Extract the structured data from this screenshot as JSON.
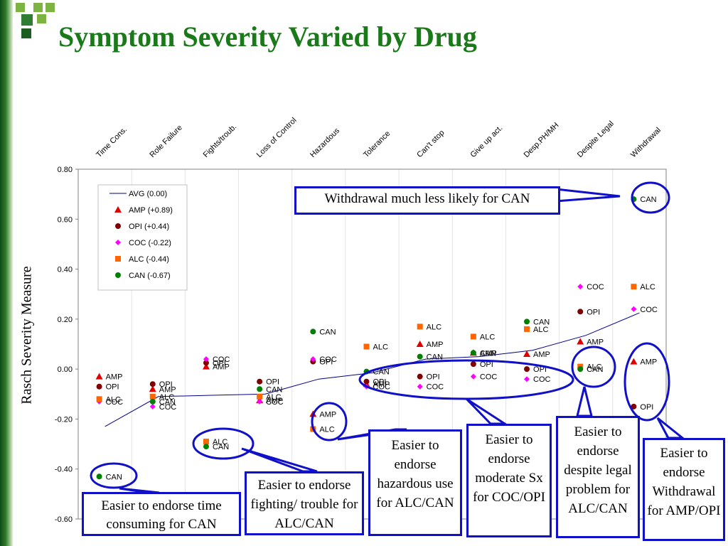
{
  "page": {
    "title": "Symptom Severity Varied by Drug",
    "colors": {
      "title": "#1a7a1a",
      "sidebar": "#1f6b22",
      "callout": "#1010c8"
    }
  },
  "chart_data": {
    "type": "scatter",
    "title": "Symptom Severity Varied by Drug",
    "xlabel": "",
    "ylabel": "Rasch Severity Measure",
    "ylim": [
      -0.6,
      0.8
    ],
    "yticks": [
      "0.80",
      "0.60",
      "0.40",
      "0.20",
      "0.00",
      "-0.20",
      "-0.40",
      "-0.60"
    ],
    "grid": true,
    "legend_position": "top-left",
    "categories": [
      "Time Cons.",
      "Role Failure",
      "Fights/troub.",
      "Loss of Control",
      "Hazardous",
      "Tolerance",
      "Can't stop",
      "Give up act.",
      "Desp.PH/MH",
      "Despite Legal",
      "Withdrawal"
    ],
    "series": [
      {
        "name": "AVG (0.00)",
        "label": "",
        "marker": "line",
        "color": "#00008b",
        "values": [
          -0.23,
          -0.11,
          -0.105,
          -0.1,
          -0.04,
          -0.015,
          0.04,
          0.05,
          0.075,
          0.135,
          0.225
        ]
      },
      {
        "name": "AMP (+0.89)",
        "label": "AMP",
        "marker": "triangle",
        "color": "#e00000",
        "values": [
          -0.03,
          -0.08,
          0.01,
          -0.125,
          -0.18,
          -0.06,
          0.1,
          0.065,
          0.06,
          0.11,
          0.03
        ]
      },
      {
        "name": "OPI (+0.44)",
        "label": "OPI",
        "marker": "circle",
        "color": "#800000",
        "values": [
          -0.07,
          -0.06,
          0.025,
          -0.05,
          0.03,
          -0.05,
          -0.03,
          0.02,
          0.0,
          0.23,
          -0.15
        ]
      },
      {
        "name": "COC (-0.22)",
        "label": "COC",
        "marker": "diamond",
        "color": "#ff00ff",
        "values": [
          -0.13,
          -0.15,
          0.04,
          -0.13,
          0.04,
          -0.07,
          -0.07,
          -0.03,
          -0.04,
          0.33,
          0.24
        ]
      },
      {
        "name": "ALC (-0.44)",
        "label": "ALC",
        "marker": "square",
        "color": "#ff6600",
        "values": [
          -0.12,
          -0.11,
          -0.29,
          -0.11,
          -0.24,
          0.09,
          0.17,
          0.13,
          0.16,
          0.01,
          0.33
        ]
      },
      {
        "name": "CAN (-0.67)",
        "label": "CAN",
        "marker": "circle",
        "color": "#008000",
        "values": [
          -0.43,
          -0.13,
          -0.31,
          -0.08,
          0.15,
          -0.01,
          0.05,
          0.065,
          0.19,
          0.0,
          0.68
        ]
      }
    ],
    "annotations": [
      {
        "name": "callout-withdrawal-can",
        "text": "Withdrawal much less likely for CAN"
      },
      {
        "name": "callout-time-consuming",
        "text": "Easier to endorse time consuming for CAN"
      },
      {
        "name": "callout-fighting",
        "text": "Easier to endorse fighting/ trouble for ALC/CAN"
      },
      {
        "name": "callout-hazardous",
        "text": "Easier to endorse hazardous use for ALC/CAN"
      },
      {
        "name": "callout-moderate",
        "text": "Easier to endorse moderate Sx for COC/OPI"
      },
      {
        "name": "callout-legal",
        "text": "Easier to endorse despite legal problem for ALC/CAN"
      },
      {
        "name": "callout-withdrawal-amp",
        "text": "Easier to endorse Withdrawal for AMP/OPI"
      }
    ]
  }
}
